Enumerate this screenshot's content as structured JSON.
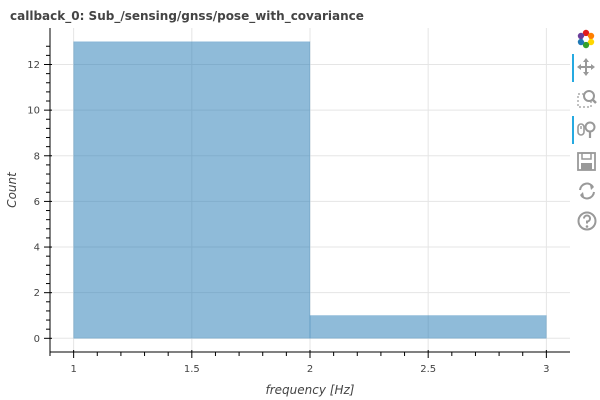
{
  "title": "callback_0: Sub_/sensing/gnss/pose_with_covariance",
  "chart_data": {
    "type": "bar",
    "bins": [
      {
        "left": 1,
        "right": 2,
        "value": 13
      },
      {
        "left": 2,
        "right": 3,
        "value": 1
      }
    ],
    "xlabel": "frequency [Hz]",
    "ylabel": "Count",
    "xlim": [
      0.9,
      3.1
    ],
    "ylim": [
      -0.6,
      13.6
    ],
    "xticks": [
      1,
      1.5,
      2,
      2.5,
      3
    ],
    "xtick_labels": [
      "1",
      "1.5",
      "2",
      "2.5",
      "3"
    ],
    "yticks": [
      0,
      2,
      4,
      6,
      8,
      10,
      12
    ],
    "ytick_labels": [
      "0",
      "2",
      "4",
      "6",
      "8",
      "10",
      "12"
    ],
    "bar_color": "#1f77b4",
    "grid": true
  },
  "toolbar": {
    "tools": [
      {
        "name": "bokeh-logo",
        "active": false
      },
      {
        "name": "pan",
        "active": true
      },
      {
        "name": "box-zoom",
        "active": false
      },
      {
        "name": "wheel-zoom",
        "active": true
      },
      {
        "name": "save",
        "active": false
      },
      {
        "name": "reset",
        "active": false
      },
      {
        "name": "help",
        "active": false
      }
    ],
    "active_color": "#26aae1"
  }
}
